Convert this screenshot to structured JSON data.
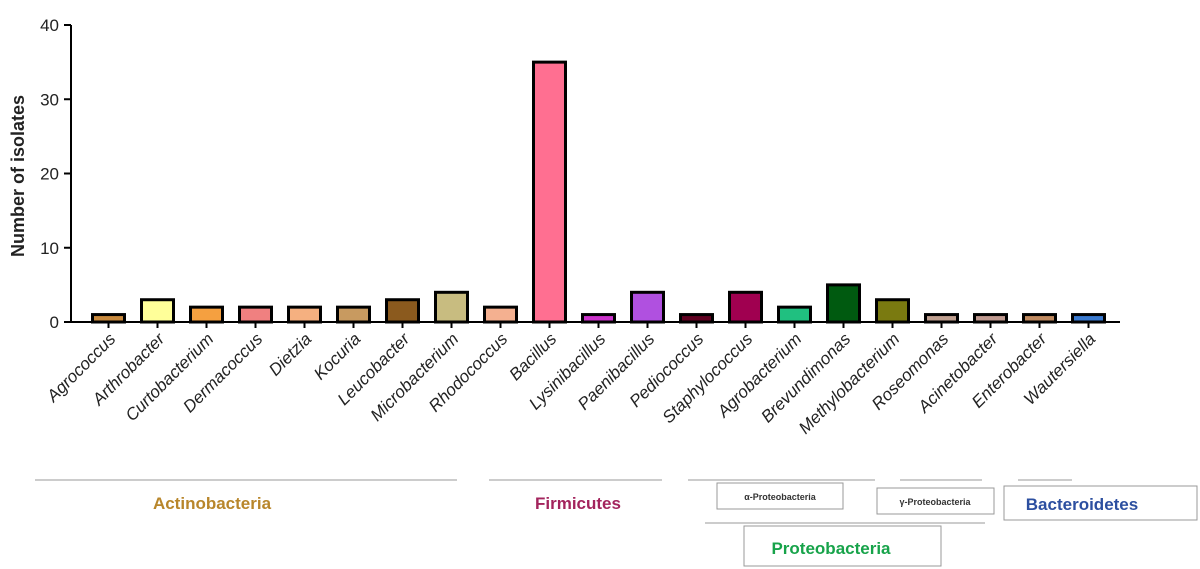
{
  "chart_data": {
    "type": "bar",
    "ylabel": "Number of isolates",
    "ylim": [
      0,
      40
    ],
    "yticks": [
      0,
      10,
      20,
      30,
      40
    ],
    "grid": false,
    "categories": [
      "Agrococcus",
      "Arthrobacter",
      "Curtobacterium",
      "Dermacoccus",
      "Dietzia",
      "Kocuria",
      "Leucobacter",
      "Microbacterium",
      "Rhodococcus",
      "Bacillus",
      "Lysinibacillus",
      "Paenibacillus",
      "Pediococcus",
      "Staphylococcus",
      "Agrobacterium",
      "Brevundimonas",
      "Methylobacterium",
      "Roseomonas",
      "Acinetobacter",
      "Enterobacter",
      "Wautersiella"
    ],
    "values": [
      1,
      3,
      2,
      2,
      2,
      2,
      3,
      4,
      2,
      35,
      1,
      4,
      1,
      4,
      2,
      5,
      3,
      1,
      1,
      1,
      1
    ],
    "colors": [
      "#c98a3e",
      "#ffff99",
      "#f5a040",
      "#f08080",
      "#f5b080",
      "#c89a60",
      "#8b5a1e",
      "#c8bc80",
      "#f4b090",
      "#ff6f91",
      "#cc33cc",
      "#b050e0",
      "#600020",
      "#a00050",
      "#20c080",
      "#005a10",
      "#7a7a10",
      "#c0a090",
      "#c09a90",
      "#c08a60",
      "#3a7ad0"
    ],
    "phyla": [
      {
        "label": "Actinobacteria",
        "color": "#b8862b"
      },
      {
        "label": "Firmicutes",
        "color": "#a3245d"
      },
      {
        "label": "Proteobacteria",
        "color": "#17a34a"
      },
      {
        "label": "Bacteroidetes",
        "color": "#2c4fa0"
      }
    ],
    "subclasses": [
      {
        "label": "α-Proteobacteria"
      },
      {
        "label": "γ-Proteobacteria"
      }
    ]
  }
}
